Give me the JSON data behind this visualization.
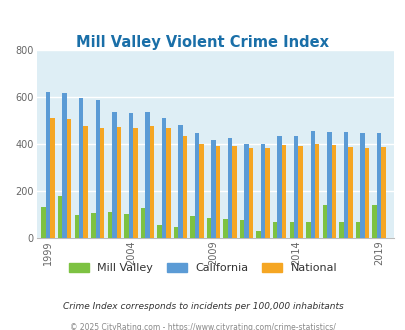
{
  "title": "Mill Valley Violent Crime Index",
  "years": [
    1999,
    2000,
    2001,
    2002,
    2003,
    2004,
    2005,
    2006,
    2007,
    2008,
    2009,
    2010,
    2011,
    2012,
    2013,
    2014,
    2015,
    2016,
    2017,
    2018,
    2019
  ],
  "mill_valley": [
    130,
    175,
    95,
    105,
    110,
    100,
    125,
    55,
    45,
    90,
    85,
    80,
    75,
    30,
    65,
    65,
    65,
    140,
    65,
    65,
    140
  ],
  "california": [
    620,
    615,
    595,
    585,
    535,
    530,
    535,
    510,
    480,
    445,
    415,
    425,
    400,
    400,
    430,
    430,
    455,
    450,
    450,
    445,
    445
  ],
  "national": [
    510,
    505,
    475,
    465,
    470,
    465,
    475,
    465,
    430,
    400,
    390,
    390,
    380,
    380,
    395,
    390,
    400,
    395,
    385,
    380,
    385
  ],
  "mill_valley_color": "#7dc242",
  "california_color": "#5b9bd5",
  "national_color": "#f5a623",
  "bg_color": "#deeef5",
  "ylim": [
    0,
    800
  ],
  "yticks": [
    0,
    200,
    400,
    600,
    800
  ],
  "subtitle": "Crime Index corresponds to incidents per 100,000 inhabitants",
  "footer": "© 2025 CityRating.com - https://www.cityrating.com/crime-statistics/",
  "title_color": "#1a6fa8",
  "subtitle_color": "#333333",
  "footer_color": "#888888",
  "xtick_labels": [
    "1999",
    "2004",
    "2009",
    "2014",
    "2019"
  ],
  "xtick_positions": [
    1999,
    2004,
    2009,
    2014,
    2019
  ],
  "grid_color": "#ffffff",
  "axis_label_color": "#666666"
}
